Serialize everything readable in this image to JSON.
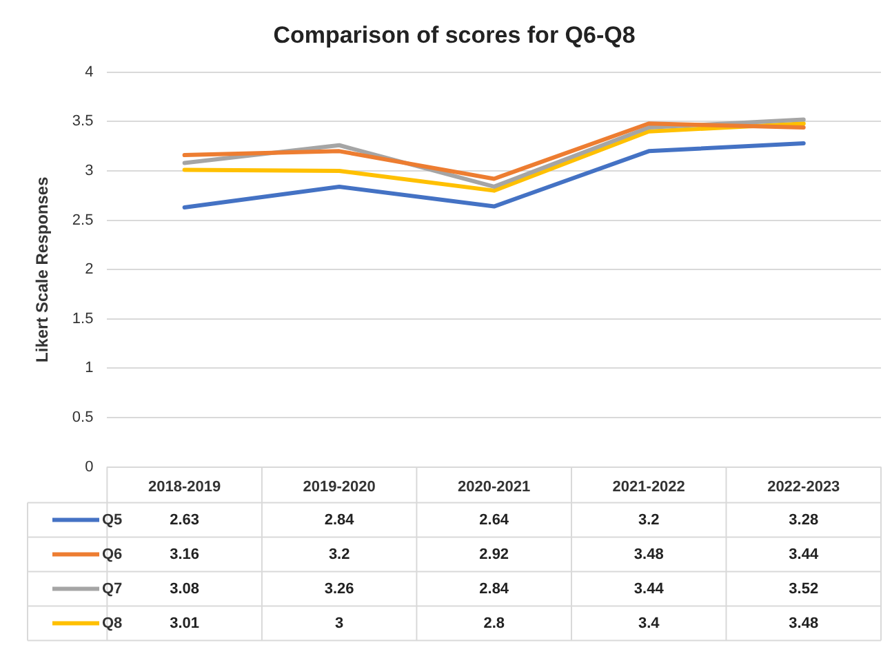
{
  "chart_data": {
    "type": "line",
    "title": "Comparison of scores for Q6-Q8",
    "ylabel": "Likert Scale Responses",
    "categories": [
      "2018-2019",
      "2019-2020",
      "2020-2021",
      "2021-2022",
      "2022-2023"
    ],
    "series": [
      {
        "name": "Q5",
        "color": "#4472c4",
        "values": [
          2.63,
          2.84,
          2.64,
          3.2,
          3.28
        ]
      },
      {
        "name": "Q6",
        "color": "#ed7d31",
        "values": [
          3.16,
          3.2,
          2.92,
          3.48,
          3.44
        ]
      },
      {
        "name": "Q7",
        "color": "#a5a5a5",
        "values": [
          3.08,
          3.26,
          2.84,
          3.44,
          3.52
        ]
      },
      {
        "name": "Q8",
        "color": "#ffc000",
        "values": [
          3.01,
          3,
          2.8,
          3.4,
          3.48
        ]
      }
    ],
    "ylim": [
      0,
      4
    ],
    "yticks": [
      0,
      0.5,
      1,
      1.5,
      2,
      2.5,
      3,
      3.5,
      4
    ],
    "grid": "y",
    "legend": "bottom",
    "data_labels": true,
    "marker": "none",
    "line_style": "solid"
  }
}
